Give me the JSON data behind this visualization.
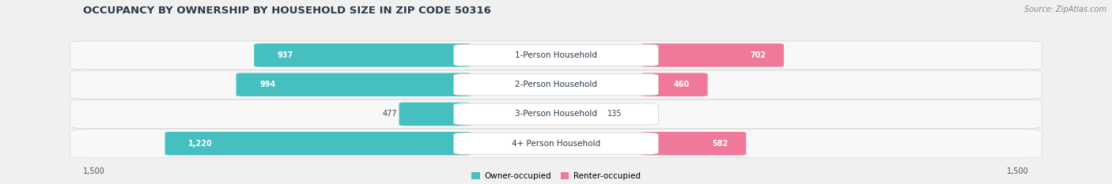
{
  "title": "OCCUPANCY BY OWNERSHIP BY HOUSEHOLD SIZE IN ZIP CODE 50316",
  "source": "Source: ZipAtlas.com",
  "categories": [
    "1-Person Household",
    "2-Person Household",
    "3-Person Household",
    "4+ Person Household"
  ],
  "owner_values": [
    937,
    994,
    477,
    1220
  ],
  "renter_values": [
    702,
    460,
    135,
    582
  ],
  "owner_color": "#45bfbf",
  "renter_color": "#f07898",
  "owner_color_light": "#a0dede",
  "renter_color_light": "#f8b8c8",
  "axis_limit": 1500,
  "background_color": "#f0f0f0",
  "row_bg_color": "#ffffff",
  "figsize": [
    14.06,
    2.33
  ],
  "dpi": 100,
  "title_fontsize": 9.5,
  "source_fontsize": 7.0,
  "bar_label_fontsize": 7.0,
  "cat_label_fontsize": 7.5,
  "axis_tick_fontsize": 7.0
}
